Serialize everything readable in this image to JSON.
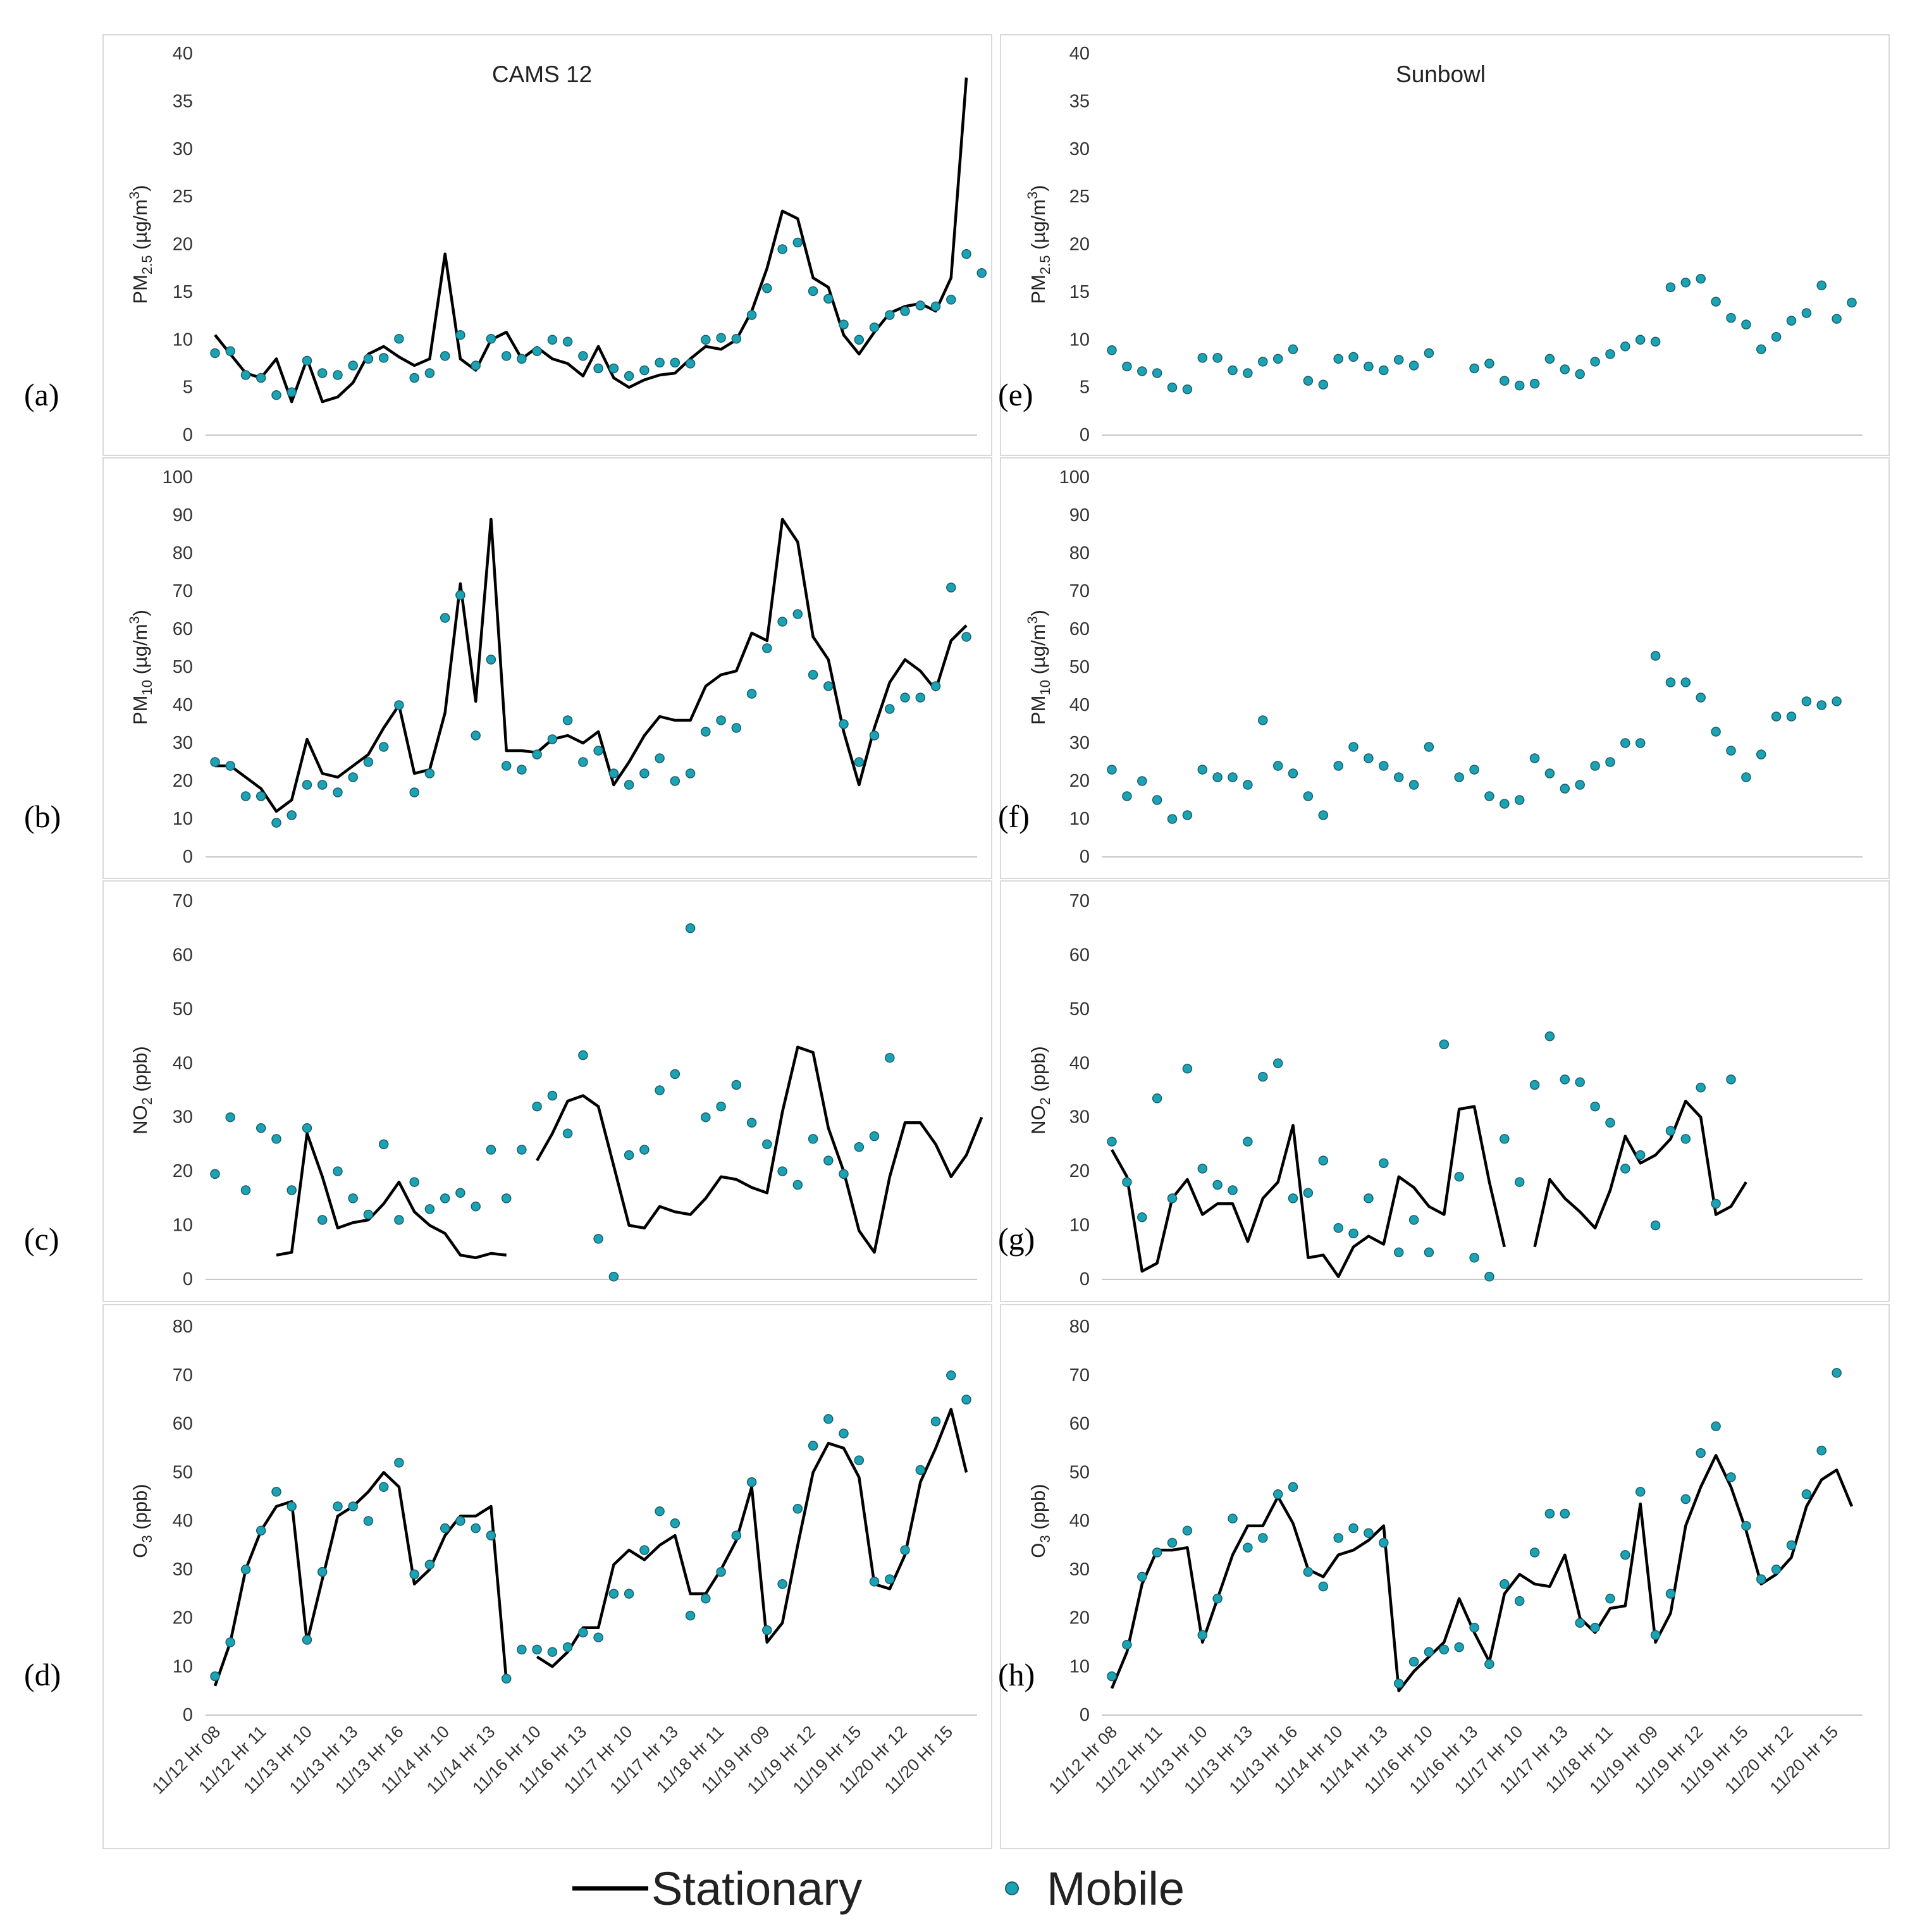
{
  "figure": {
    "legend": {
      "stationary_label": "Stationary",
      "mobile_label": "Mobile"
    },
    "x_ticks": [
      "11/12 Hr 08",
      "11/12 Hr 11",
      "11/13 Hr 10",
      "11/13 Hr 13",
      "11/13 Hr 16",
      "11/14 Hr 10",
      "11/14 Hr 13",
      "11/16 Hr 10",
      "11/16 Hr 13",
      "11/17 Hr 10",
      "11/17 Hr 13",
      "11/18 Hr 11",
      "11/19 Hr 09",
      "11/19 Hr 12",
      "11/19 Hr 15",
      "11/20 Hr 12",
      "11/20 Hr 15"
    ]
  },
  "colors": {
    "line": "#000000",
    "marker": "#1aa3b5",
    "marker_edge": "#1a5e6a",
    "axis": "#c8c8c8",
    "text": "#333333"
  },
  "chart_data": [
    {
      "panel": "(a)",
      "site": "CAMS 12",
      "type": "line",
      "ylabel_main": "PM",
      "ylabel_sub": "2.5",
      "ylabel_unit": " (µg/m",
      "ylabel_sup": "3",
      "ylabel_end": ")",
      "ylim": [
        0,
        40
      ],
      "yticks": [
        "0",
        "5",
        "10",
        "15",
        "20",
        "25",
        "30",
        "35",
        "40"
      ],
      "stationary": [
        10.5,
        8.5,
        6.5,
        6,
        8,
        3.5,
        8,
        3.5,
        4,
        5.5,
        8.5,
        9.3,
        8.2,
        7.3,
        8,
        19,
        8,
        6.8,
        10,
        10.8,
        8,
        9.2,
        8,
        7.5,
        6.2,
        9.3,
        6,
        5,
        5.8,
        6.3,
        6.5,
        8,
        9.3,
        9,
        10,
        13,
        17.5,
        23.5,
        22.7,
        16.5,
        15.5,
        10.5,
        8.5,
        10.8,
        12.8,
        13.5,
        13.8,
        13,
        16.5,
        37.5
      ],
      "mobile": [
        8.6,
        8.8,
        6.3,
        6,
        4.2,
        4.5,
        7.8,
        6.5,
        6.3,
        7.3,
        8,
        8.1,
        10.1,
        6,
        6.5,
        8.3,
        10.5,
        7.3,
        10.1,
        8.3,
        8,
        8.8,
        10,
        9.8,
        8.3,
        7,
        7,
        6.2,
        6.8,
        7.6,
        7.6,
        7.5,
        10,
        10.2,
        10.1,
        12.6,
        15.4,
        19.5,
        20.2,
        15.1,
        14.3,
        11.6,
        10,
        11.3,
        12.6,
        13,
        13.6,
        13.5,
        14.2,
        19,
        17
      ]
    },
    {
      "panel": "(b)",
      "site": "",
      "type": "line",
      "ylabel_main": "PM",
      "ylabel_sub": "10",
      "ylabel_unit": " (µg/m",
      "ylabel_sup": "3",
      "ylabel_end": ")",
      "ylim": [
        0,
        100
      ],
      "yticks": [
        "0",
        "10",
        "20",
        "30",
        "40",
        "50",
        "60",
        "70",
        "80",
        "90",
        "100"
      ],
      "stationary": [
        24,
        24,
        21,
        18,
        12,
        15,
        31,
        22,
        21,
        24,
        27,
        34,
        40,
        22,
        23,
        38,
        72,
        41,
        89,
        28,
        28,
        27.5,
        31,
        32,
        30,
        33,
        19,
        25,
        32,
        37,
        36,
        36,
        45,
        48,
        49,
        59,
        57,
        89,
        83,
        58,
        52,
        33,
        19,
        34,
        46,
        52,
        49,
        44,
        57,
        61
      ],
      "mobile": [
        25,
        24,
        16,
        16,
        9,
        11,
        19,
        19,
        17,
        21,
        25,
        29,
        40,
        17,
        22,
        63,
        69,
        32,
        52,
        24,
        23,
        27,
        31,
        36,
        25,
        28,
        22,
        19,
        22,
        26,
        20,
        22,
        33,
        36,
        34,
        43,
        55,
        62,
        64,
        48,
        45,
        35,
        25,
        32,
        39,
        42,
        42,
        45,
        71,
        58
      ]
    },
    {
      "panel": "(c)",
      "site": "",
      "type": "line",
      "ylabel_main": "NO",
      "ylabel_sub": "2",
      "ylabel_unit": " (ppb)",
      "ylabel_sup": "",
      "ylabel_end": "",
      "ylim": [
        0,
        70
      ],
      "yticks": [
        "0",
        "10",
        "20",
        "30",
        "40",
        "50",
        "60",
        "70"
      ],
      "stationary": [
        null,
        null,
        null,
        null,
        4.5,
        5,
        27,
        19,
        9.5,
        10.5,
        11,
        14,
        18,
        12.5,
        10,
        8.5,
        4.5,
        4,
        4.8,
        4.5,
        null,
        22,
        27,
        33,
        34,
        32,
        21,
        10,
        9.5,
        13.5,
        12.5,
        12,
        15,
        19,
        18.5,
        17,
        16,
        31,
        43,
        42,
        28,
        20,
        9,
        5,
        19,
        29,
        29,
        25,
        19,
        23,
        30
      ],
      "mobile": [
        19.5,
        30,
        16.5,
        28,
        26,
        16.5,
        28,
        11,
        20,
        15,
        12,
        25,
        11,
        18,
        13,
        15,
        16,
        13.5,
        24,
        15,
        24,
        32,
        34,
        27,
        41.5,
        7.5,
        0.5,
        23,
        24,
        35,
        38,
        65,
        30,
        32,
        36,
        29,
        25,
        20,
        17.5,
        26,
        22,
        19.5,
        24.5,
        26.5,
        41
      ]
    },
    {
      "panel": "(d)",
      "site": "",
      "type": "line",
      "ylabel_main": "O",
      "ylabel_sub": "3",
      "ylabel_unit": " (ppb)",
      "ylabel_sup": "",
      "ylabel_end": "",
      "ylim": [
        0,
        80
      ],
      "yticks": [
        "0",
        "10",
        "20",
        "30",
        "40",
        "50",
        "60",
        "70",
        "80"
      ],
      "stationary": [
        6,
        15,
        30,
        38,
        43,
        44,
        15,
        28,
        41,
        43,
        46,
        50,
        47,
        27,
        30,
        37,
        41,
        41,
        43,
        7,
        null,
        12,
        10,
        13,
        18,
        18,
        31,
        34,
        32,
        35,
        37,
        25,
        25,
        30,
        36,
        47,
        15,
        19,
        35,
        50,
        56,
        55,
        49,
        27,
        26,
        33,
        48,
        55,
        63,
        50
      ],
      "mobile": [
        8,
        15,
        30,
        38,
        46,
        43,
        15.5,
        29.5,
        43,
        43,
        40,
        47,
        52,
        29,
        31,
        38.5,
        40,
        38.5,
        37,
        7.5,
        13.5,
        13.5,
        13,
        14,
        17,
        16,
        25,
        25,
        34,
        42,
        39.5,
        20.5,
        24,
        29.5,
        37,
        48,
        17.5,
        27,
        42.5,
        55.5,
        61,
        58,
        52.5,
        27.5,
        28,
        34,
        50.5,
        60.5,
        70,
        65
      ]
    },
    {
      "panel": "(e)",
      "site": "Sunbowl",
      "type": "scatter",
      "ylabel_main": "PM",
      "ylabel_sub": "2.5",
      "ylabel_unit": " (µg/m",
      "ylabel_sup": "3",
      "ylabel_end": ")",
      "ylim": [
        0,
        40
      ],
      "yticks": [
        "0",
        "5",
        "10",
        "15",
        "20",
        "25",
        "30",
        "35",
        "40"
      ],
      "stationary": [],
      "mobile": [
        8.9,
        7.2,
        6.7,
        6.5,
        5,
        4.8,
        8.1,
        8.1,
        6.8,
        6.5,
        7.7,
        8,
        9,
        5.7,
        5.3,
        8,
        8.2,
        7.2,
        6.8,
        7.9,
        7.3,
        8.6,
        null,
        null,
        7,
        7.5,
        5.7,
        5.2,
        5.4,
        8,
        6.9,
        6.4,
        7.7,
        8.5,
        9.3,
        10,
        9.8,
        15.5,
        16,
        16.4,
        14,
        12.3,
        11.6,
        9,
        10.3,
        12,
        12.8,
        15.7,
        12.2,
        13.9
      ]
    },
    {
      "panel": "(f)",
      "site": "",
      "type": "scatter",
      "ylabel_main": "PM",
      "ylabel_sub": "10",
      "ylabel_unit": " (µg/m",
      "ylabel_sup": "3",
      "ylabel_end": ")",
      "ylim": [
        0,
        100
      ],
      "yticks": [
        "0",
        "10",
        "20",
        "30",
        "40",
        "50",
        "60",
        "70",
        "80",
        "90",
        "100"
      ],
      "stationary": [],
      "mobile": [
        23,
        16,
        20,
        15,
        10,
        11,
        23,
        21,
        21,
        19,
        36,
        24,
        22,
        16,
        11,
        24,
        29,
        26,
        24,
        21,
        19,
        29,
        null,
        21,
        23,
        16,
        14,
        15,
        26,
        22,
        18,
        19,
        24,
        25,
        30,
        30,
        53,
        46,
        46,
        42,
        33,
        28,
        21,
        27,
        37,
        37,
        41,
        40,
        41
      ]
    },
    {
      "panel": "(g)",
      "site": "",
      "type": "line",
      "ylabel_main": "NO",
      "ylabel_sub": "2",
      "ylabel_unit": " (ppb)",
      "ylabel_sup": "",
      "ylabel_end": "",
      "ylim": [
        0,
        70
      ],
      "yticks": [
        "0",
        "10",
        "20",
        "30",
        "40",
        "50",
        "60",
        "70"
      ],
      "stationary": [
        24,
        19,
        1.5,
        3,
        15,
        18.5,
        12,
        14,
        14,
        7,
        15,
        18,
        28.5,
        4,
        4.5,
        0.5,
        6,
        8,
        6.5,
        19,
        17,
        13.5,
        12,
        31.5,
        32,
        18,
        6,
        null,
        6,
        18.5,
        15,
        12.5,
        9.5,
        16.5,
        26.5,
        21.5,
        23,
        26,
        33,
        30,
        12,
        13.5,
        18
      ],
      "mobile": [
        25.5,
        18,
        11.5,
        33.5,
        15,
        39,
        20.5,
        17.5,
        16.5,
        25.5,
        37.5,
        40,
        15,
        16,
        22,
        9.5,
        8.5,
        15,
        21.5,
        5,
        11,
        5,
        43.5,
        19,
        4,
        0.5,
        26,
        18,
        36,
        45,
        37,
        36.5,
        32,
        29,
        20.5,
        23,
        10,
        27.5,
        26,
        35.5,
        14,
        37
      ]
    },
    {
      "panel": "(h)",
      "site": "",
      "type": "line",
      "ylabel_main": "O",
      "ylabel_sub": "3",
      "ylabel_unit": " (ppb)",
      "ylabel_sup": "",
      "ylabel_end": "",
      "ylim": [
        0,
        80
      ],
      "yticks": [
        "0",
        "10",
        "20",
        "30",
        "40",
        "50",
        "60",
        "70",
        "80"
      ],
      "stationary": [
        5.5,
        13,
        27,
        34,
        34,
        34.5,
        15,
        24,
        33,
        39,
        39,
        45,
        39.5,
        30,
        28.5,
        33,
        34,
        36,
        39,
        5,
        9,
        12,
        15,
        24,
        17,
        11,
        25,
        29,
        27,
        26.5,
        33,
        20,
        17,
        22,
        22.5,
        43.5,
        15,
        21,
        39,
        47,
        53.5,
        47,
        38,
        27,
        29,
        32.5,
        43,
        48.5,
        50.5,
        43
      ],
      "mobile": [
        8,
        14.5,
        28.5,
        33.5,
        35.5,
        38,
        16.5,
        24,
        40.5,
        34.5,
        36.5,
        45.5,
        47,
        29.5,
        26.5,
        36.5,
        38.5,
        37.5,
        35.5,
        6.5,
        11,
        13,
        13.5,
        14,
        18,
        10.5,
        27,
        23.5,
        33.5,
        41.5,
        41.5,
        19,
        18,
        24,
        33,
        46,
        16.5,
        25,
        44.5,
        54,
        59.5,
        49,
        39,
        28,
        30,
        35,
        45.5,
        54.5,
        70.5
      ]
    }
  ]
}
